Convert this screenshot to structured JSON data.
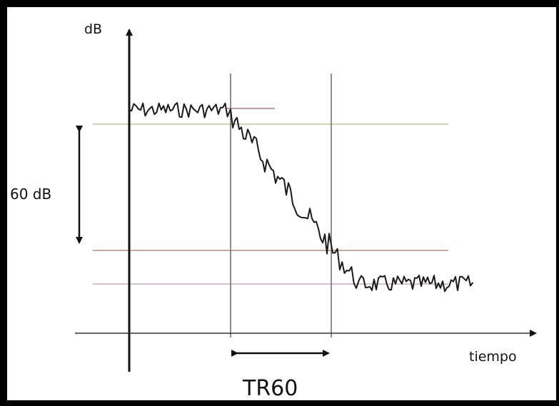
{
  "labels": {
    "y_axis": "dB",
    "x_axis": "tiempo",
    "level_span": "60 dB",
    "duration": "TR60"
  },
  "colors": {
    "axis": "#111111",
    "signal": "#1a1a1a",
    "upper_level_line": "#d8d2a8",
    "lower_level_line": "#c8a9a0",
    "noise_floor_line": "#d7c2d4",
    "short_marker_line": "#c99aa6",
    "marker_line": "#6a6a6a"
  }
}
